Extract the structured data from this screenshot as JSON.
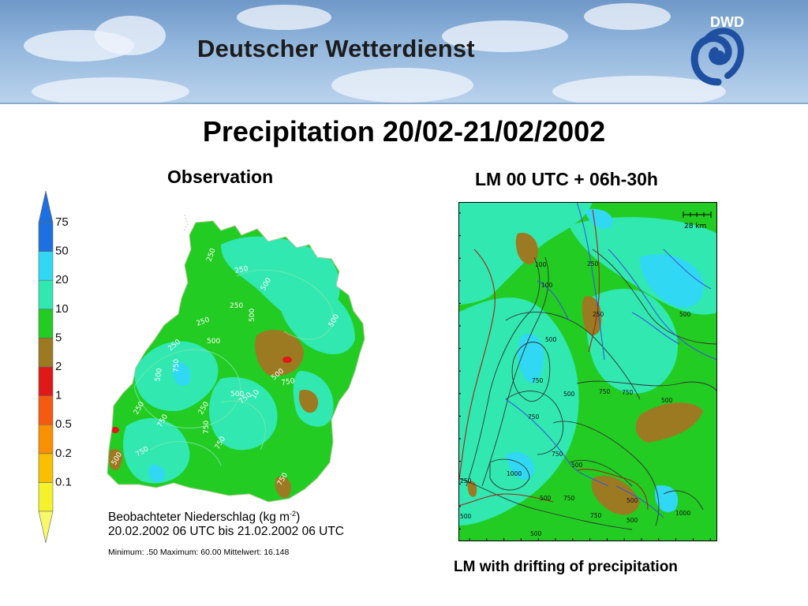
{
  "header": {
    "org_name": "Deutscher Wetterdienst",
    "logo_text": "DWD"
  },
  "page": {
    "title": "Precipitation 20/02-21/02/2002"
  },
  "observation": {
    "title": "Observation",
    "caption_line1_prefix": "Beobachteter Niederschlag (kg m",
    "caption_line1_sup": "-2",
    "caption_line1_suffix": ")",
    "caption_line2": "20.02.2002 06 UTC bis 21.02.2002 06 UTC",
    "stats": "Minimum:  .50  Maximum:  60.00  Mittelwert:  16.148",
    "legend_levels": [
      "0.1",
      "0.2",
      "0.5",
      "1",
      "2",
      "5",
      "10",
      "20",
      "50",
      "75"
    ],
    "legend_colors": [
      "#f4f22c",
      "#f8c000",
      "#f89000",
      "#f45a10",
      "#e01818",
      "#9c7a22",
      "#22cc22",
      "#30e8b0",
      "#30d8f4",
      "#1c70e0"
    ],
    "contour_labels": [
      "250",
      "250",
      "250",
      "250",
      "250",
      "250",
      "250",
      "500",
      "500",
      "500",
      "500",
      "500",
      "500",
      "500",
      "500",
      "750",
      "750",
      "750",
      "750",
      "750",
      "750",
      "750",
      "750",
      "10"
    ]
  },
  "forecast": {
    "title": "LM 00 UTC + 06h-30h",
    "caption": "LM with drifting of precipitation",
    "scale_label": "28  km",
    "contour_labels": [
      "100",
      "250",
      "100",
      "250",
      "500",
      "500",
      "750",
      "500",
      "750",
      "750",
      "500",
      "750",
      "750",
      "1000",
      "750",
      "500",
      "500",
      "250",
      "500",
      "500",
      "750",
      "1000",
      "500",
      "500"
    ]
  },
  "colors": {
    "green": "#22cc22",
    "turquoise": "#30e8b0",
    "cyan": "#30d8f4",
    "brown": "#9c7a22",
    "red": "#e01818",
    "banner_sky": "#93b7dd",
    "logo_blue": "#1f4fa0"
  }
}
